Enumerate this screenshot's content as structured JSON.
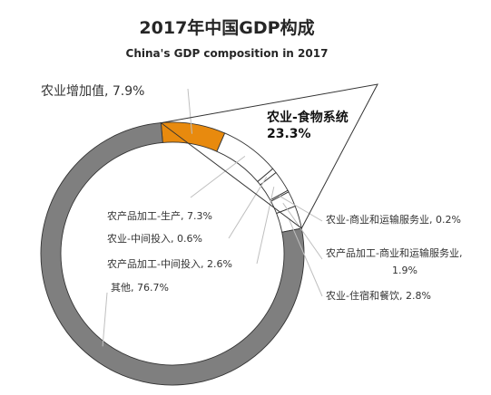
{
  "chart_data": {
    "type": "pie",
    "variant": "donut",
    "title": "2017年中国GDP构成",
    "subtitle": "China's GDP composition in 2017",
    "slices": [
      {
        "label": "农业增加值, 7.9%",
        "value": 7.9,
        "color": "#e88a0e"
      },
      {
        "label": "农产品加工-生产, 7.3%",
        "value": 7.3,
        "color": "#ffffff"
      },
      {
        "label": "农业-中间投入, 0.6%",
        "value": 0.6,
        "color": "#ffffff"
      },
      {
        "label": "农产品加工-中间投入, 2.6%",
        "value": 2.6,
        "color": "#ffffff"
      },
      {
        "label": "农业-商业和运输服务业, 0.2%",
        "value": 0.2,
        "color": "#ffffff"
      },
      {
        "label": "农产品加工-商业和运输服务业, 1.9%",
        "label_line1": "农产品加工-商业和运输服务业,",
        "label_line2": "1.9%",
        "value": 1.9,
        "color": "#ffffff"
      },
      {
        "label": "农业-住宿和餐饮, 2.8%",
        "value": 2.8,
        "color": "#ffffff"
      },
      {
        "label": "其他, 76.7%",
        "value": 76.7,
        "color": "#7f7f7f"
      }
    ],
    "group_callout": {
      "line1": "农业-食物系统",
      "line2": "23.3%"
    },
    "legend": "none"
  }
}
